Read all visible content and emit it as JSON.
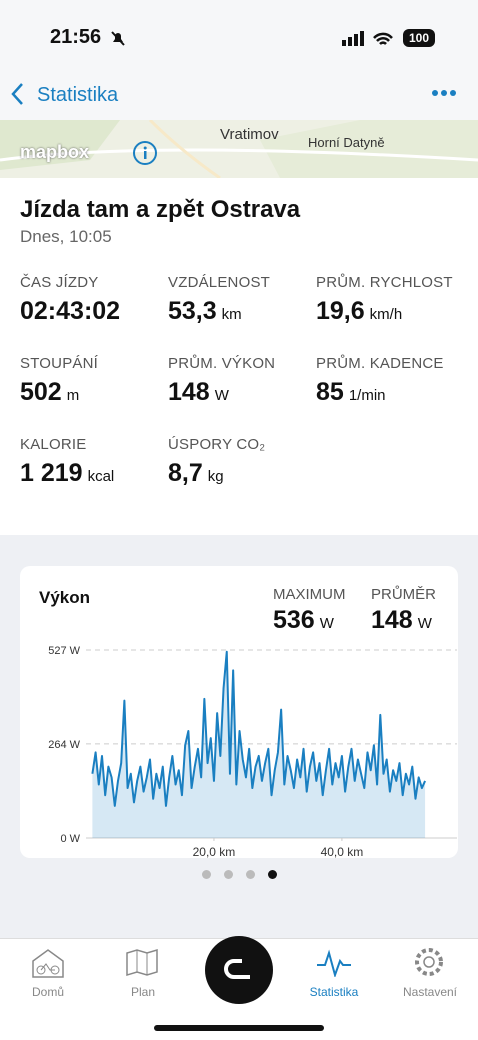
{
  "status_bar": {
    "time": "21:56",
    "battery": "100"
  },
  "nav": {
    "back": "Statistika"
  },
  "map": {
    "labels": [
      "Vratimov",
      "Horní Datyně"
    ],
    "attribution": "mapbox"
  },
  "ride": {
    "title": "Jízda tam a zpět Ostrava",
    "date": "Dnes, 10:05"
  },
  "stats": [
    {
      "label": "ČAS JÍZDY",
      "value": "02:43:02"
    },
    {
      "label": "VZDÁLENOST",
      "value": "53,3",
      "unit": "km"
    },
    {
      "label": "PRŮM. RYCHLOST",
      "value": "19,6",
      "unit": "km/h"
    },
    {
      "label": "STOUPÁNÍ",
      "value": "502",
      "unit": "m"
    },
    {
      "label": "PRŮM. VÝKON",
      "value": "148",
      "unit": "W"
    },
    {
      "label": "PRŮM. KADENCE",
      "value": "85",
      "unit": "1/min"
    },
    {
      "label": "KALORIE",
      "value": "1 219",
      "unit": "kcal"
    },
    {
      "label": "ÚSPORY CO₂",
      "value": "8,7",
      "unit": "kg"
    }
  ],
  "chart_data": {
    "type": "area",
    "title": "Výkon",
    "summary": [
      {
        "label": "MAXIMUM",
        "value": 536,
        "unit": "W"
      },
      {
        "label": "PRŮMĚR",
        "value": 148,
        "unit": "W"
      }
    ],
    "x": [
      1,
      1.5,
      2,
      2.5,
      3,
      3.5,
      4,
      4.5,
      5,
      5.5,
      6,
      6.5,
      7,
      7.5,
      8,
      8.5,
      9,
      9.5,
      10,
      10.5,
      11,
      11.5,
      12,
      12.5,
      13,
      13.5,
      14,
      14.5,
      15,
      15.5,
      16,
      16.5,
      17,
      17.5,
      18,
      18.5,
      19,
      19.5,
      20,
      20.5,
      21,
      21.5,
      22,
      22.5,
      23,
      23.5,
      24,
      24.5,
      25,
      25.5,
      26,
      26.5,
      27,
      27.5,
      28,
      28.5,
      29,
      29.5,
      30,
      30.5,
      31,
      31.5,
      32,
      32.5,
      33,
      33.5,
      34,
      34.5,
      35,
      35.5,
      36,
      36.5,
      37,
      37.5,
      38,
      38.5,
      39,
      39.5,
      40,
      40.5,
      41,
      41.5,
      42,
      42.5,
      43,
      43.5,
      44,
      44.5,
      45,
      45.5,
      46,
      46.5,
      47,
      47.5,
      48,
      48.5,
      49,
      49.5,
      50,
      50.5,
      51,
      51.5,
      52,
      52.5,
      53
    ],
    "values": [
      180,
      240,
      150,
      230,
      120,
      200,
      170,
      90,
      160,
      210,
      385,
      140,
      180,
      100,
      160,
      200,
      130,
      170,
      220,
      110,
      180,
      140,
      200,
      90,
      170,
      230,
      150,
      190,
      120,
      260,
      300,
      140,
      200,
      250,
      170,
      390,
      210,
      280,
      160,
      350,
      230,
      420,
      522,
      180,
      470,
      150,
      300,
      220,
      170,
      250,
      140,
      200,
      230,
      160,
      210,
      250,
      120,
      190,
      240,
      360,
      150,
      230,
      190,
      140,
      220,
      170,
      250,
      130,
      200,
      240,
      160,
      210,
      120,
      190,
      250,
      150,
      210,
      170,
      230,
      130,
      200,
      250,
      160,
      220,
      180,
      140,
      240,
      190,
      260,
      150,
      345,
      180,
      220,
      130,
      190,
      160,
      210,
      120,
      180,
      150,
      200,
      110,
      170,
      140,
      160
    ],
    "color": "#1a7fc1",
    "xlim": [
      0,
      53.3
    ],
    "ylim": [
      0,
      527
    ],
    "xticks": [
      {
        "value": 20,
        "label": "20,0 km"
      },
      {
        "value": 40,
        "label": "40,0 km"
      }
    ],
    "yticks": [
      {
        "value": 0,
        "label": "0 W"
      },
      {
        "value": 264,
        "label": "264 W"
      },
      {
        "value": 527,
        "label": "527 W"
      }
    ],
    "grid": true
  },
  "pager": {
    "count": 4,
    "active": 3
  },
  "tabs": [
    "Domů",
    "Plan",
    "Statistika",
    "Nastavení"
  ],
  "active_tab": 2
}
